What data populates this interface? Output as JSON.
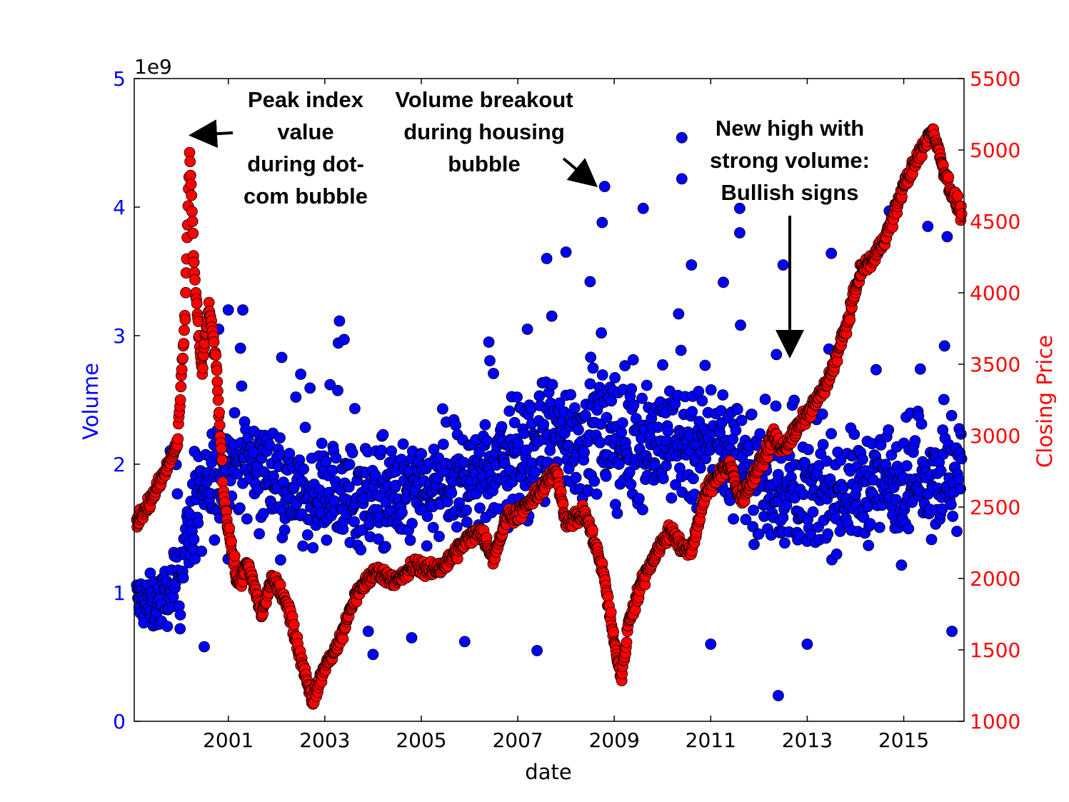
{
  "chart_data": {
    "type": "scatter",
    "title": "",
    "xlabel": "date",
    "ylabel_left": "Volume",
    "ylabel_right": "Closing Price",
    "left_offset_label": "1e9",
    "xlim": [
      1999.05,
      2016.25
    ],
    "ylim_left": [
      0,
      5
    ],
    "ylim_right": [
      1000,
      5500
    ],
    "x_ticks": [
      "2001",
      "2003",
      "2005",
      "2007",
      "2009",
      "2011",
      "2013",
      "2015"
    ],
    "y_ticks_left": [
      "0",
      "1",
      "2",
      "3",
      "4",
      "5"
    ],
    "y_ticks_right": [
      "1000",
      "1500",
      "2000",
      "2500",
      "3000",
      "3500",
      "4000",
      "4500",
      "5000",
      "5500"
    ],
    "grid": false,
    "colors": {
      "volume": "#0000ff",
      "price": "#ff0000",
      "left_axis": "#0000ff",
      "right_axis": "#ff0000"
    },
    "series": [
      {
        "axis": "left",
        "trend": [
          [
            1999.1,
            0.95
          ],
          [
            1999.5,
            0.9
          ],
          [
            1999.9,
            1.05
          ],
          [
            2000.3,
            1.65
          ],
          [
            2000.8,
            1.9
          ],
          [
            2001.2,
            2.05
          ],
          [
            2001.8,
            1.95
          ],
          [
            2002.5,
            1.75
          ],
          [
            2003.2,
            1.8
          ],
          [
            2004.0,
            1.75
          ],
          [
            2004.8,
            1.75
          ],
          [
            2005.5,
            1.8
          ],
          [
            2006.3,
            1.95
          ],
          [
            2007.0,
            2.05
          ],
          [
            2007.8,
            2.2
          ],
          [
            2008.5,
            2.25
          ],
          [
            2009.2,
            2.2
          ],
          [
            2010.0,
            2.2
          ],
          [
            2010.8,
            2.15
          ],
          [
            2011.5,
            2.1
          ],
          [
            2012.2,
            1.8
          ],
          [
            2013.0,
            1.75
          ],
          [
            2013.8,
            1.8
          ],
          [
            2014.5,
            1.85
          ],
          [
            2015.2,
            1.95
          ],
          [
            2016.2,
            1.9
          ]
        ],
        "outliers": [
          [
            2000.0,
            0.72
          ],
          [
            2000.5,
            0.58
          ],
          [
            2000.8,
            3.05
          ],
          [
            2001.0,
            3.2
          ],
          [
            2001.3,
            3.2
          ],
          [
            2002.5,
            2.7
          ],
          [
            2003.4,
            2.97
          ],
          [
            2003.9,
            0.7
          ],
          [
            2004.0,
            0.52
          ],
          [
            2004.8,
            0.65
          ],
          [
            2005.9,
            0.62
          ],
          [
            2006.4,
            2.95
          ],
          [
            2007.2,
            3.05
          ],
          [
            2007.4,
            0.55
          ],
          [
            2007.6,
            3.6
          ],
          [
            2008.0,
            3.65
          ],
          [
            2008.5,
            3.42
          ],
          [
            2008.8,
            4.16
          ],
          [
            2008.75,
            3.88
          ],
          [
            2009.6,
            3.99
          ],
          [
            2010.4,
            4.54
          ],
          [
            2010.4,
            4.22
          ],
          [
            2010.6,
            3.55
          ],
          [
            2011.0,
            0.6
          ],
          [
            2011.6,
            3.99
          ],
          [
            2011.6,
            3.8
          ],
          [
            2012.4,
            0.2
          ],
          [
            2012.5,
            3.55
          ],
          [
            2013.0,
            0.6
          ],
          [
            2013.5,
            3.64
          ],
          [
            2014.7,
            3.97
          ],
          [
            2015.5,
            3.85
          ],
          [
            2015.9,
            3.77
          ],
          [
            2016.0,
            0.7
          ]
        ]
      },
      {
        "axis": "right",
        "trend": [
          [
            1999.1,
            2400
          ],
          [
            1999.4,
            2550
          ],
          [
            1999.7,
            2750
          ],
          [
            1999.95,
            2950
          ],
          [
            2000.1,
            3800
          ],
          [
            2000.2,
            5000
          ],
          [
            2000.3,
            4100
          ],
          [
            2000.45,
            3450
          ],
          [
            2000.6,
            3900
          ],
          [
            2000.75,
            3500
          ],
          [
            2000.9,
            2600
          ],
          [
            2001.05,
            2250
          ],
          [
            2001.2,
            1950
          ],
          [
            2001.4,
            2100
          ],
          [
            2001.7,
            1750
          ],
          [
            2001.9,
            2000
          ],
          [
            2002.2,
            1850
          ],
          [
            2002.5,
            1450
          ],
          [
            2002.75,
            1150
          ],
          [
            2003.0,
            1380
          ],
          [
            2003.3,
            1550
          ],
          [
            2003.6,
            1850
          ],
          [
            2003.9,
            2000
          ],
          [
            2004.1,
            2050
          ],
          [
            2004.5,
            1980
          ],
          [
            2004.9,
            2100
          ],
          [
            2005.2,
            2050
          ],
          [
            2005.5,
            2100
          ],
          [
            2005.9,
            2250
          ],
          [
            2006.2,
            2350
          ],
          [
            2006.5,
            2150
          ],
          [
            2006.8,
            2450
          ],
          [
            2007.0,
            2450
          ],
          [
            2007.3,
            2550
          ],
          [
            2007.8,
            2750
          ],
          [
            2008.0,
            2400
          ],
          [
            2008.4,
            2450
          ],
          [
            2008.6,
            2250
          ],
          [
            2008.8,
            2000
          ],
          [
            2009.0,
            1550
          ],
          [
            2009.15,
            1300
          ],
          [
            2009.3,
            1700
          ],
          [
            2009.6,
            2000
          ],
          [
            2009.9,
            2200
          ],
          [
            2010.2,
            2350
          ],
          [
            2010.4,
            2200
          ],
          [
            2010.6,
            2200
          ],
          [
            2010.9,
            2600
          ],
          [
            2011.2,
            2750
          ],
          [
            2011.4,
            2800
          ],
          [
            2011.6,
            2550
          ],
          [
            2011.8,
            2650
          ],
          [
            2012.1,
            2850
          ],
          [
            2012.3,
            3000
          ],
          [
            2012.5,
            2900
          ],
          [
            2012.8,
            3050
          ],
          [
            2013.0,
            3150
          ],
          [
            2013.4,
            3350
          ],
          [
            2013.8,
            3750
          ],
          [
            2014.1,
            4150
          ],
          [
            2014.4,
            4250
          ],
          [
            2014.7,
            4450
          ],
          [
            2015.0,
            4750
          ],
          [
            2015.3,
            4950
          ],
          [
            2015.6,
            5150
          ],
          [
            2015.8,
            4900
          ],
          [
            2016.0,
            4700
          ],
          [
            2016.2,
            4550
          ]
        ]
      }
    ],
    "annotations": [
      {
        "lines": [
          "Peak index",
          "value",
          "during dot-",
          "com bubble"
        ]
      },
      {
        "lines": [
          "Volume breakout",
          "during housing",
          "bubble"
        ]
      },
      {
        "lines": [
          "New high with",
          "strong volume:",
          "Bullish signs"
        ]
      }
    ]
  }
}
